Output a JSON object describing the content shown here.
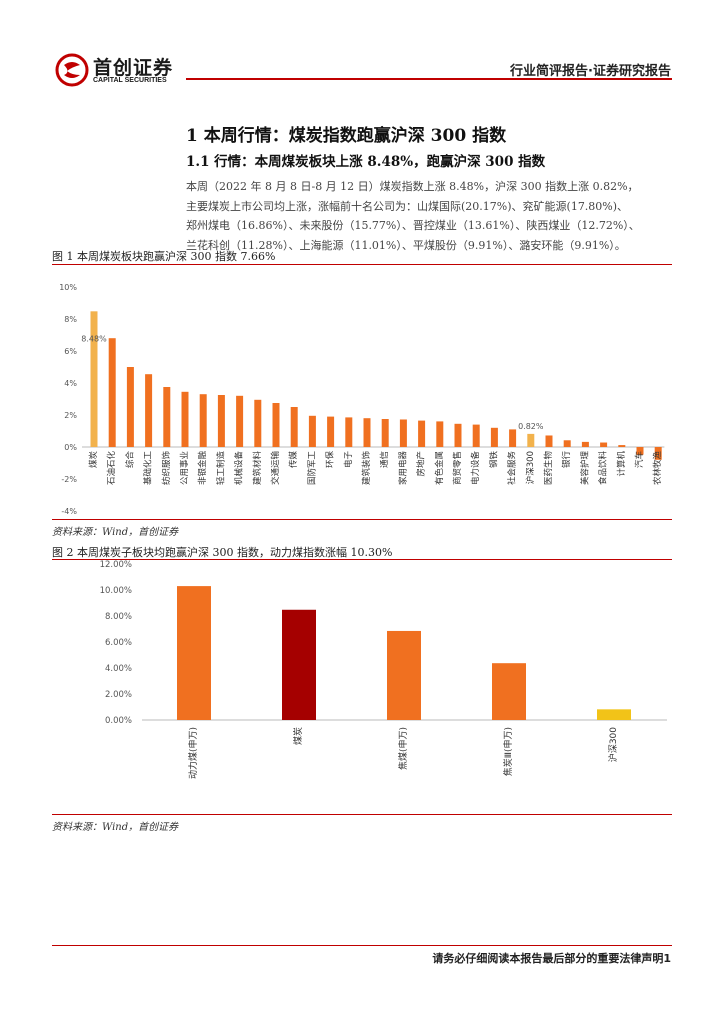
{
  "header": {
    "brand_cn": "首创证券",
    "brand_en": "CAPITAL SECURITIES",
    "report_type": "行业简评报告·证券研究报告"
  },
  "section": {
    "h1": "1 本周行情：煤炭指数跑赢沪深 300 指数",
    "h2": "1.1 行情：本周煤炭板块上涨 8.48%，跑赢沪深 300 指数",
    "paragraph_lines": [
      "本周（2022 年 8 月 8 日-8 月 12 日）煤炭指数上涨 8.48%，沪深 300 指数上涨 0.82%，",
      "主要煤炭上市公司均上涨，涨幅前十名公司为：山煤国际(20.17%)、兖矿能源(17.80%)、",
      "郑州煤电（16.86%）、未来股份（15.77%）、晋控煤业（13.61%）、陕西煤业（12.72%）、",
      "兰花科创（11.28%）、上海能源（11.01%）、平煤股份（9.91%）、潞安环能（9.91%）。"
    ]
  },
  "figure1": {
    "caption": "图 1 本周煤炭板块跑赢沪深 300 指数 7.66%",
    "source": "资料来源：Wind，首创证券"
  },
  "figure2": {
    "caption": "图 2 本周煤炭子板块均跑赢沪深 300 指数，动力煤指数涨幅 10.30%",
    "source": "资料来源：Wind，首创证券"
  },
  "footer": {
    "text": "请务必仔细阅读本报告最后部分的重要法律声明1"
  },
  "colors": {
    "brand_red": "#c00000",
    "bar_orange": "#f07020",
    "bar_gold": "#f2b24c",
    "bar_darkred": "#a50000",
    "bar_yellow": "#f2c318"
  },
  "chart_data": [
    {
      "type": "bar",
      "ylim": [
        -4,
        10
      ],
      "yticks": [
        "10%",
        "8%",
        "6%",
        "4%",
        "2%",
        "0%",
        "-2%",
        "-4%"
      ],
      "grid": false,
      "categories": [
        "煤炭",
        "石油石化",
        "综合",
        "基础化工",
        "纺织服饰",
        "公用事业",
        "非银金融",
        "轻工制造",
        "机械设备",
        "建筑材料",
        "交通运输",
        "传媒",
        "国防军工",
        "环保",
        "电子",
        "建筑装饰",
        "通信",
        "家用电器",
        "房地产",
        "有色金属",
        "商贸零售",
        "电力设备",
        "钢铁",
        "社会服务",
        "沪深300",
        "医药生物",
        "银行",
        "美容护理",
        "食品饮料",
        "计算机",
        "汽车",
        "农林牧渔"
      ],
      "values": [
        8.48,
        6.8,
        5.0,
        4.55,
        3.75,
        3.45,
        3.3,
        3.25,
        3.2,
        2.95,
        2.75,
        2.5,
        1.95,
        1.9,
        1.85,
        1.8,
        1.75,
        1.72,
        1.65,
        1.6,
        1.45,
        1.4,
        1.2,
        1.1,
        0.82,
        0.72,
        0.42,
        0.32,
        0.28,
        0.12,
        -0.48,
        -0.8
      ],
      "data_labels": [
        {
          "category": "煤炭",
          "text": "8.48%"
        },
        {
          "category": "沪深300",
          "text": "0.82%"
        }
      ],
      "highlight": [
        "煤炭",
        "沪深300"
      ]
    },
    {
      "type": "bar",
      "ylim": [
        0,
        12
      ],
      "yticks": [
        "12.00%",
        "10.00%",
        "8.00%",
        "6.00%",
        "4.00%",
        "2.00%",
        "0.00%"
      ],
      "grid": false,
      "categories": [
        "动力煤(申万)",
        "煤炭",
        "焦煤(申万)",
        "焦炭Ⅲ(申万)",
        "沪深300"
      ],
      "values": [
        10.3,
        8.48,
        6.85,
        4.37,
        0.82
      ]
    }
  ]
}
